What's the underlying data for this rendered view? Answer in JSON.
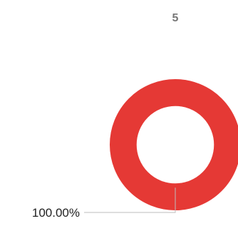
{
  "chart_data": {
    "type": "pie",
    "title": "5",
    "slices": [
      {
        "label": "",
        "value": 100.0,
        "percent_label": "100.00%",
        "color": "#e53935"
      }
    ],
    "hole_ratio": 0.59,
    "label_line_color": "#bdbdbd"
  }
}
